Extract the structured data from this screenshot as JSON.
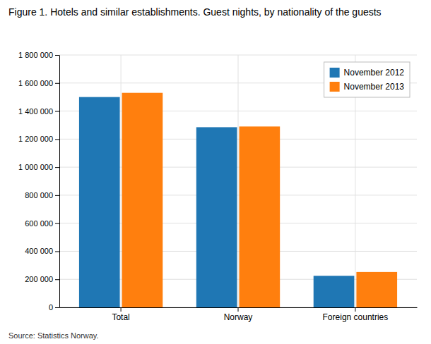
{
  "chart_data": {
    "type": "bar",
    "title": "Figure 1. Hotels and similar establishments. Guest nights, by nationality of the guests",
    "annotations": [
      "Source: Statistics Norway."
    ],
    "categories": [
      "Total",
      "Norway",
      "Foreign countries"
    ],
    "series": [
      {
        "name": "November 2012",
        "values": [
          1500000,
          1285000,
          225000
        ]
      },
      {
        "name": "November 2013",
        "values": [
          1530000,
          1290000,
          252000
        ]
      }
    ],
    "ylim": [
      0,
      1800000
    ],
    "yticks": [
      0,
      {
        "value": 200000,
        "label": "200 000"
      },
      {
        "value": 400000,
        "label": "400 000"
      },
      {
        "value": 600000,
        "label": "600 000"
      },
      {
        "value": 800000,
        "label": "800 000"
      },
      {
        "value": 1000000,
        "label": "1 000 000"
      },
      {
        "value": 1200000,
        "label": "1 200 000"
      },
      {
        "value": 1400000,
        "label": "1 400 000"
      },
      {
        "value": 1600000,
        "label": "1 600 000"
      },
      {
        "value": 1800000,
        "label": "1 800 000"
      }
    ],
    "grid": true,
    "legend": "top-right"
  }
}
